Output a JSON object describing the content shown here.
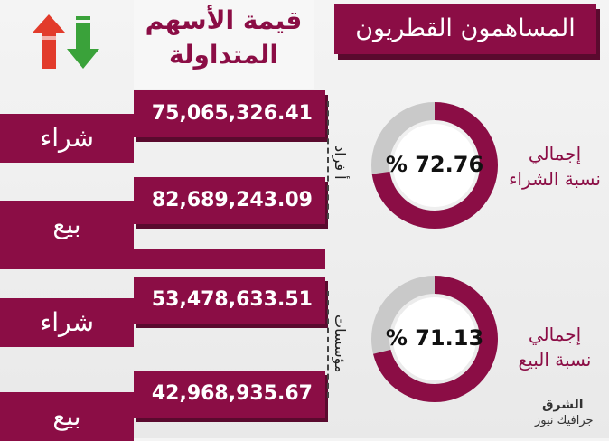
{
  "header": {
    "banner_title": "المساهمون القطريون",
    "column_title_line1": "قيمة الأسهم",
    "column_title_line2": "المتداولة"
  },
  "groups": [
    {
      "label": "أفراد",
      "label_display": "أ فراد"
    },
    {
      "label": "مؤسسات",
      "label_display": "مؤسسات"
    }
  ],
  "rows": [
    {
      "action": "شراء",
      "value": "75,065,326.41"
    },
    {
      "action": "بيع",
      "value": "82,689,243.09"
    },
    {
      "action": "شراء",
      "value": "53,478,633.51"
    },
    {
      "action": "بيع",
      "value": "42,968,935.67"
    }
  ],
  "donuts": [
    {
      "percent_text": "% 72.76",
      "percent": 72.76,
      "caption_line1": "إجمالي",
      "caption_line2": "نسبة الشراء"
    },
    {
      "percent_text": "% 71.13",
      "percent": 71.13,
      "caption_line1": "إجمالي",
      "caption_line2": "نسبة البيع"
    }
  ],
  "logo": {
    "line1": "الشرق",
    "line2": "جرافيك نيوز"
  },
  "colors": {
    "accent": "#8b0d45",
    "accent_dark": "#5a0a2e",
    "ring_bg": "#c9c9c9",
    "up_arrow": "#e23b2b",
    "down_arrow": "#3aa23a"
  },
  "icons": {
    "trend": "up-down-arrows-icon"
  }
}
